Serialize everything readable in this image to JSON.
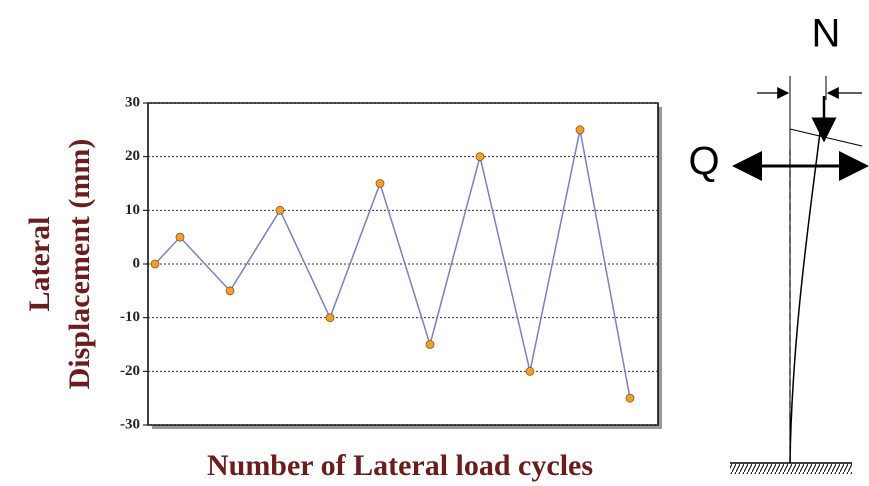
{
  "chart_data": {
    "type": "line",
    "ylabel": [
      "Lateral",
      "Displacement (mm)"
    ],
    "xlabel": "Number of Lateral load cycles",
    "x": [
      0,
      0.5,
      1.5,
      2.5,
      3.5,
      4.5,
      5.5,
      6.5,
      7.5,
      8.5,
      9.5
    ],
    "series": [
      {
        "color": "#7b7fc6",
        "marker_color": "#f0a030",
        "values": [
          0,
          5,
          -5,
          10,
          -10,
          15,
          -15,
          20,
          -20,
          25,
          -25
        ]
      }
    ],
    "xlim": [
      -0.14,
      10.06
    ],
    "ylim": [
      -30,
      30
    ],
    "yticks": [
      -30,
      -20,
      -10,
      0,
      10,
      20,
      30
    ],
    "grid": true
  },
  "diagram": {
    "axial_label": "N",
    "lateral_label": "Q"
  }
}
